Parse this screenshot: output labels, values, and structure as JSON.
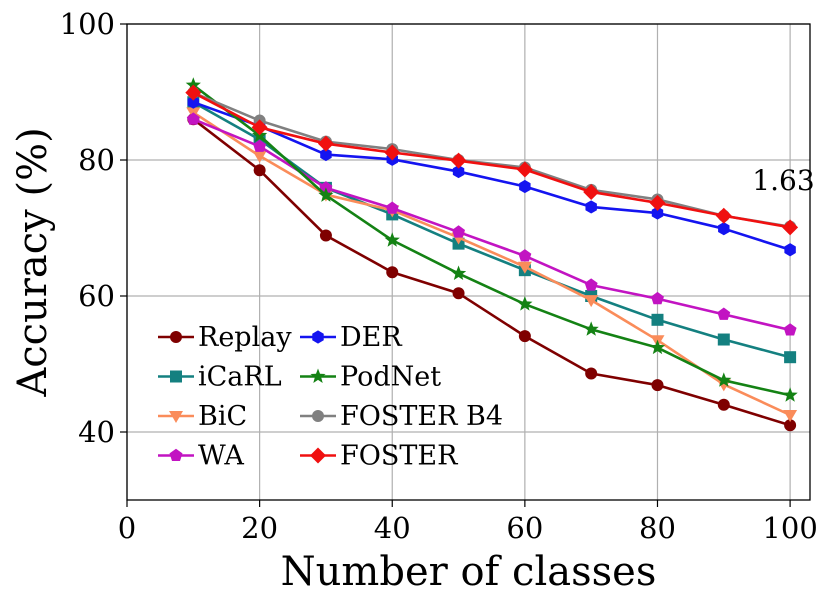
{
  "chart_data": {
    "type": "line",
    "title": "",
    "xlabel": "Number of classes",
    "ylabel": "Accuracy (%)",
    "xlim": [
      0,
      103
    ],
    "ylim": [
      30,
      100
    ],
    "xticks": [
      0,
      20,
      40,
      60,
      80,
      100
    ],
    "yticks": [
      40,
      60,
      80,
      100
    ],
    "grid": true,
    "legend_position": "bottom-left",
    "x": [
      10,
      20,
      30,
      40,
      50,
      60,
      70,
      80,
      90,
      100
    ],
    "series": [
      {
        "name": "Replay",
        "color": "#7f0000",
        "marker": "circle",
        "values": [
          86.0,
          78.5,
          68.9,
          63.5,
          60.4,
          54.1,
          48.6,
          46.9,
          44.0,
          41.0
        ]
      },
      {
        "name": "iCaRL",
        "color": "#148080",
        "marker": "square",
        "values": [
          88.5,
          83.0,
          75.9,
          72.0,
          67.7,
          63.8,
          60.0,
          56.5,
          53.6,
          51.0
        ]
      },
      {
        "name": "BiC",
        "color": "#fa8c5a",
        "marker": "triangle-down",
        "values": [
          87.0,
          80.6,
          74.9,
          72.6,
          68.6,
          64.3,
          59.4,
          53.5,
          47.0,
          42.5
        ]
      },
      {
        "name": "WA",
        "color": "#c214c2",
        "marker": "pentagon",
        "values": [
          86.0,
          82.0,
          75.9,
          72.9,
          69.4,
          65.9,
          61.6,
          59.6,
          57.3,
          55.0
        ]
      },
      {
        "name": "DER",
        "color": "#1414f0",
        "marker": "hexagon",
        "values": [
          88.5,
          85.0,
          80.8,
          80.1,
          78.3,
          76.1,
          73.1,
          72.2,
          69.9,
          66.8
        ]
      },
      {
        "name": "PodNet",
        "color": "#148214",
        "marker": "star",
        "values": [
          91.0,
          83.6,
          74.8,
          68.2,
          63.3,
          58.8,
          55.1,
          52.4,
          47.6,
          45.4
        ]
      },
      {
        "name": "FOSTER B4",
        "color": "#808080",
        "marker": "circle",
        "values": [
          89.9,
          85.8,
          82.7,
          81.6,
          80.0,
          78.9,
          75.6,
          74.2,
          71.8,
          70.2
        ]
      },
      {
        "name": "FOSTER",
        "color": "#f01010",
        "marker": "diamond",
        "values": [
          89.9,
          84.8,
          82.4,
          81.1,
          79.9,
          78.6,
          75.3,
          73.7,
          71.8,
          70.1
        ]
      }
    ],
    "annotations": [
      {
        "text": "1.63",
        "x": 99,
        "y": 75.6
      }
    ]
  }
}
